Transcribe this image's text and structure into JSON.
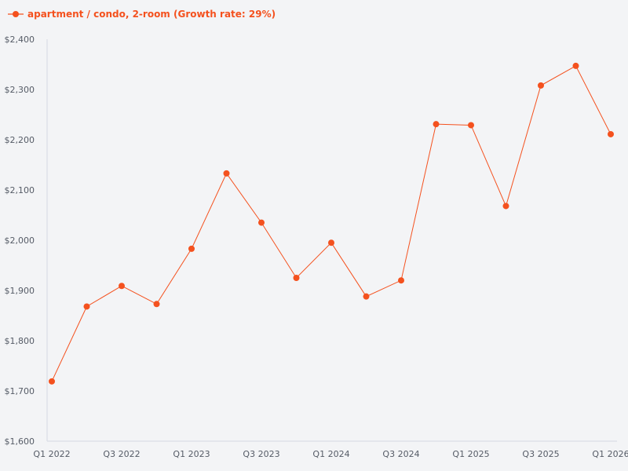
{
  "chart_data": {
    "type": "line",
    "x": [
      "Q1 2022",
      "Q2 2022",
      "Q3 2022",
      "Q4 2022",
      "Q1 2023",
      "Q2 2023",
      "Q3 2023",
      "Q4 2023",
      "Q1 2024",
      "Q2 2024",
      "Q3 2024",
      "Q4 2024",
      "Q1 2025",
      "Q2 2025",
      "Q3 2025",
      "Q4 2025",
      "Q1 2026"
    ],
    "x_tick_labels": [
      "Q1 2022",
      "Q3 2022",
      "Q1 2023",
      "Q3 2023",
      "Q1 2024",
      "Q3 2024",
      "Q1 2025",
      "Q3 2025",
      "Q1 2026"
    ],
    "series": [
      {
        "name": "apartment / condo, 2-room (Growth rate: 29%)",
        "color": "#f4511e",
        "values": [
          1719,
          1868,
          1909,
          1873,
          1983,
          2133,
          2035,
          1925,
          1995,
          1888,
          1920,
          2231,
          2229,
          2068,
          2308,
          2347,
          2211
        ]
      }
    ],
    "ylim": [
      1600,
      2400
    ],
    "y_ticks": [
      1600,
      1700,
      1800,
      1900,
      2000,
      2100,
      2200,
      2300,
      2400
    ],
    "y_tick_format": "$#,###",
    "grid": false,
    "legend_position": "top-left",
    "title": "",
    "xlabel": "",
    "ylabel": ""
  }
}
